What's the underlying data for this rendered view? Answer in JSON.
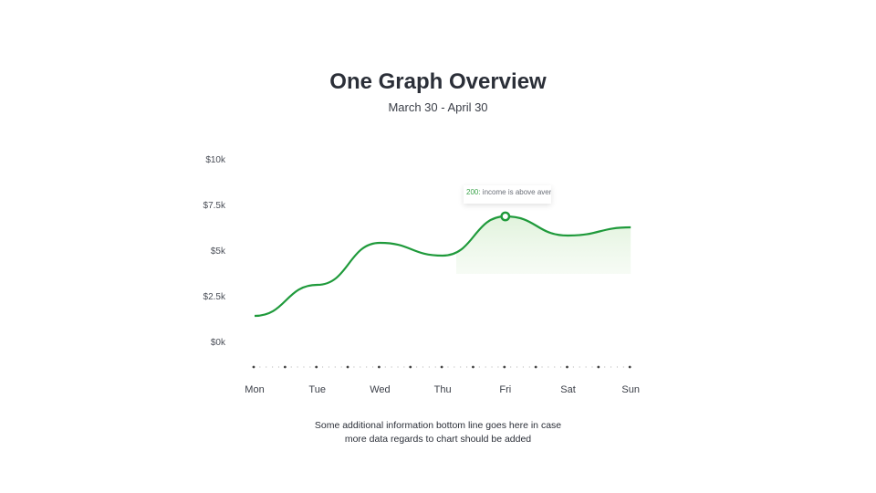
{
  "title": "One Graph Overview",
  "subtitle": "March 30 - April 30",
  "footnote": {
    "line1": "Some additional information bottom line goes here in case",
    "line2": "more data regards to chart should be added"
  },
  "tooltip": {
    "value": "200:",
    "text": " income is above average"
  },
  "colors": {
    "line": "#1f9a3b",
    "fill": "#e9f6e6",
    "text": "#2b2f38"
  },
  "chart_data": {
    "type": "line",
    "categories": [
      "Mon",
      "Tue",
      "Wed",
      "Thu",
      "Fri",
      "Sat",
      "Sun"
    ],
    "values": [
      1400,
      3100,
      5400,
      4700,
      6850,
      5800,
      6250
    ],
    "yticks": [
      "$0k",
      "$2.5k",
      "$5k",
      "$7.5k",
      "$10k"
    ],
    "ylim": [
      0,
      10000
    ],
    "highlight_index": 4,
    "grid": false,
    "title": "One Graph Overview",
    "subtitle": "March 30 - April 30"
  }
}
